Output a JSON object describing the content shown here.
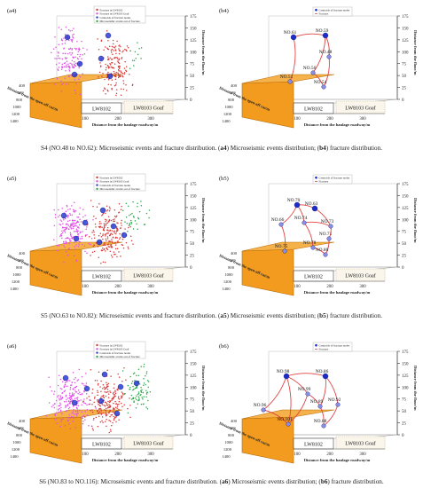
{
  "figure": {
    "rows": [
      {
        "caption": {
          "prefix": "S4 (NO.48 to NO.62): Microseismic events and fracture distribution. (",
          "tag_left": "a4",
          "mid": ") Microseismic events distribution; (",
          "tag_right": "b4",
          "suffix": ") fracture distribution."
        },
        "left": {
          "panel_label": "(a4)",
          "legend": [
            "Fracture in LW8102",
            "Fracture in LW8103 Goaf",
            "Centroids of fracture nodes",
            "Microseismic events out of fracture"
          ],
          "colors": {
            "red": "#d63838",
            "magenta": "#e04ee6",
            "green": "#2aa84a"
          }
        },
        "right": {
          "panel_label": "(b4)",
          "legend": [
            "Centroids of fracture nodes",
            "Fracture"
          ],
          "nodes": [
            {
              "label": "NO.61",
              "kind": "big"
            },
            {
              "label": "NO.59",
              "kind": "big"
            },
            {
              "label": "NO.48",
              "kind": "small"
            },
            {
              "label": "NO.56",
              "kind": "small"
            },
            {
              "label": "NO.51",
              "kind": "small"
            },
            {
              "label": "NO.54",
              "kind": "small"
            }
          ]
        }
      },
      {
        "caption": {
          "prefix": "S5 (NO.63 to NO.82): Microseismic events and fracture distribution. (",
          "tag_left": "a5",
          "mid": ") Microseismic events distribution; (",
          "tag_right": "b5",
          "suffix": ") fracture distribution."
        },
        "left": {
          "panel_label": "(a5)",
          "legend": [
            "Fracture in LW8102",
            "Fracture in LW8103 Goaf",
            "Centroids of fracture nodes",
            "Microseismic events out of fracture"
          ],
          "colors": {
            "red": "#d63838",
            "magenta": "#e04ee6",
            "green": "#2aa84a"
          }
        },
        "right": {
          "panel_label": "(b5)",
          "legend": [
            "Centroids of fracture nodes",
            "Fracture"
          ],
          "nodes": [
            {
              "label": "NO.70",
              "kind": "big"
            },
            {
              "label": "NO.63",
              "kind": "big"
            },
            {
              "label": "NO.66",
              "kind": "small"
            },
            {
              "label": "NO.74",
              "kind": "small"
            },
            {
              "label": "NO.73",
              "kind": "small"
            },
            {
              "label": "NO.71",
              "kind": "small"
            },
            {
              "label": "NO.75",
              "kind": "small"
            },
            {
              "label": "NO.78",
              "kind": "small"
            },
            {
              "label": "NO.80",
              "kind": "small"
            }
          ]
        }
      },
      {
        "caption": {
          "prefix": "S6 (NO.83 to NO.116): Microseismic events and fracture distribution. (",
          "tag_left": "a6",
          "mid": ") Microseismic events distribution; (",
          "tag_right": "b6",
          "suffix": ") fracture distribution."
        },
        "left": {
          "panel_label": "(a6)",
          "legend": [
            "Fracture in LW8102",
            "Fracture in LW8103 Goaf",
            "Centroids of fracture nodes",
            "Microseismic events out of fracture"
          ],
          "colors": {
            "red": "#d63838",
            "magenta": "#e04ee6",
            "green": "#2aa84a"
          }
        },
        "right": {
          "panel_label": "(b6)",
          "legend": [
            "Centroids of fracture nodes",
            "Fracture"
          ],
          "nodes": [
            {
              "label": "NO.98",
              "kind": "big"
            },
            {
              "label": "NO.86",
              "kind": "big"
            },
            {
              "label": "NO.99",
              "kind": "small"
            },
            {
              "label": "NO.96",
              "kind": "small"
            },
            {
              "label": "NO.89",
              "kind": "small"
            },
            {
              "label": "NO.92",
              "kind": "small"
            },
            {
              "label": "NO.101",
              "kind": "small"
            },
            {
              "label": "NO.88",
              "kind": "small"
            }
          ]
        }
      }
    ],
    "axes": {
      "z_label": "Distance from the floor/m",
      "z_ticks": [
        "175",
        "150",
        "125",
        "100",
        "75",
        "50",
        "25",
        "0"
      ],
      "x_label": "Distance from the haulage roadway/m",
      "x_ticks": [
        "100",
        "200",
        "300"
      ],
      "y_label": "Distance from the open-off cut/m",
      "y_ticks": [
        "400",
        "600",
        "800",
        "1000",
        "1200",
        "1400"
      ]
    },
    "panels": {
      "face_label": "LW8102",
      "goaf_label": "LW8103 Goaf"
    }
  }
}
